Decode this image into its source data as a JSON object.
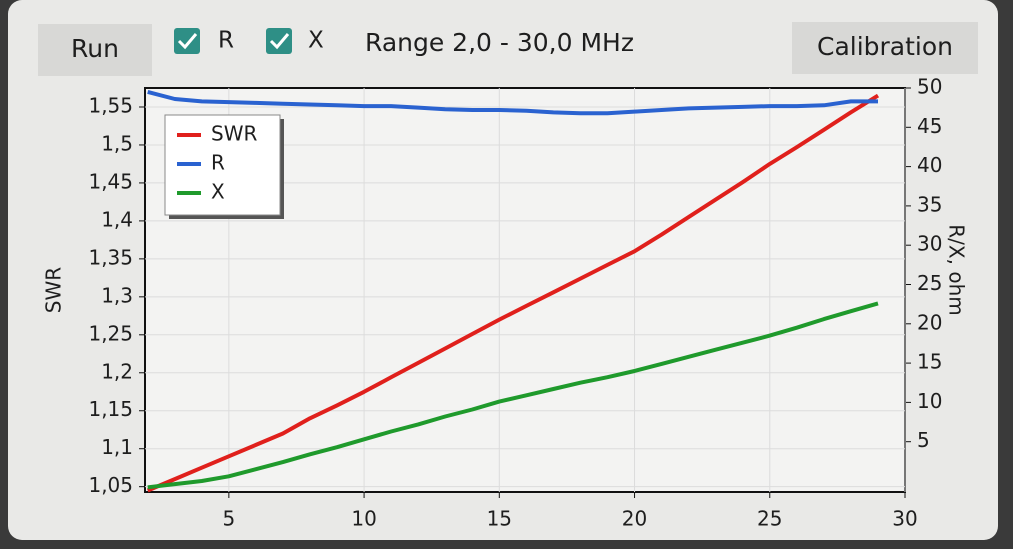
{
  "toolbar": {
    "run": "Run",
    "r_label": "R",
    "x_label": "X",
    "range": "Range 2,0 - 30,0 MHz",
    "calibration": "Calibration"
  },
  "chart_data": {
    "type": "line",
    "y_label": "SWR",
    "y2_label": "R/X, ohm",
    "x": [
      2,
      3,
      4,
      5,
      6,
      7,
      8,
      9,
      10,
      11,
      12,
      13,
      14,
      15,
      16,
      17,
      18,
      19,
      20,
      21,
      22,
      23,
      24,
      25,
      26,
      27,
      28,
      29
    ],
    "series": [
      {
        "name": "SWR",
        "color": "#e0201c",
        "values": [
          1.045,
          1.06,
          1.075,
          1.09,
          1.105,
          1.12,
          1.14,
          1.157,
          1.175,
          1.194,
          1.213,
          1.232,
          1.251,
          1.27,
          1.288,
          1.306,
          1.324,
          1.342,
          1.36,
          1.382,
          1.405,
          1.428,
          1.451,
          1.475,
          1.497,
          1.52,
          1.543,
          1.565
        ]
      },
      {
        "name": "R",
        "color": "#2a62d0",
        "axis": "y2",
        "values": [
          49.5,
          48.6,
          48.3,
          48.2,
          48.1,
          48.0,
          47.9,
          47.8,
          47.7,
          47.7,
          47.5,
          47.3,
          47.2,
          47.2,
          47.1,
          46.9,
          46.8,
          46.8,
          47.0,
          47.2,
          47.4,
          47.5,
          47.6,
          47.7,
          47.7,
          47.8,
          48.3,
          48.3
        ]
      },
      {
        "name": "X",
        "color": "#1f9a2c",
        "axis": "y2",
        "values": [
          -0.8,
          -0.4,
          0.0,
          0.6,
          1.5,
          2.4,
          3.4,
          4.3,
          5.3,
          6.3,
          7.2,
          8.2,
          9.1,
          10.1,
          10.9,
          11.7,
          12.5,
          13.2,
          14.0,
          14.9,
          15.8,
          16.7,
          17.6,
          18.5,
          19.5,
          20.6,
          21.6,
          22.6
        ]
      }
    ],
    "xlim": [
      1.9,
      30
    ],
    "xticks": [
      5,
      10,
      15,
      20,
      25,
      30
    ],
    "ylim": [
      1.043,
      1.575
    ],
    "yticks": [
      {
        "value": 1.05,
        "label": "1,05"
      },
      {
        "value": 1.1,
        "label": "1,1"
      },
      {
        "value": 1.15,
        "label": "1,15"
      },
      {
        "value": 1.2,
        "label": "1,2"
      },
      {
        "value": 1.25,
        "label": "1,25"
      },
      {
        "value": 1.3,
        "label": "1,3"
      },
      {
        "value": 1.35,
        "label": "1,35"
      },
      {
        "value": 1.4,
        "label": "1,4"
      },
      {
        "value": 1.45,
        "label": "1,45"
      },
      {
        "value": 1.5,
        "label": "1,5"
      },
      {
        "value": 1.55,
        "label": "1,55"
      }
    ],
    "y2lim": [
      -1.4,
      50
    ],
    "y2ticks": [
      5,
      10,
      15,
      20,
      25,
      30,
      35,
      40,
      45,
      50
    ],
    "grid": true,
    "legend": "upper-left"
  }
}
